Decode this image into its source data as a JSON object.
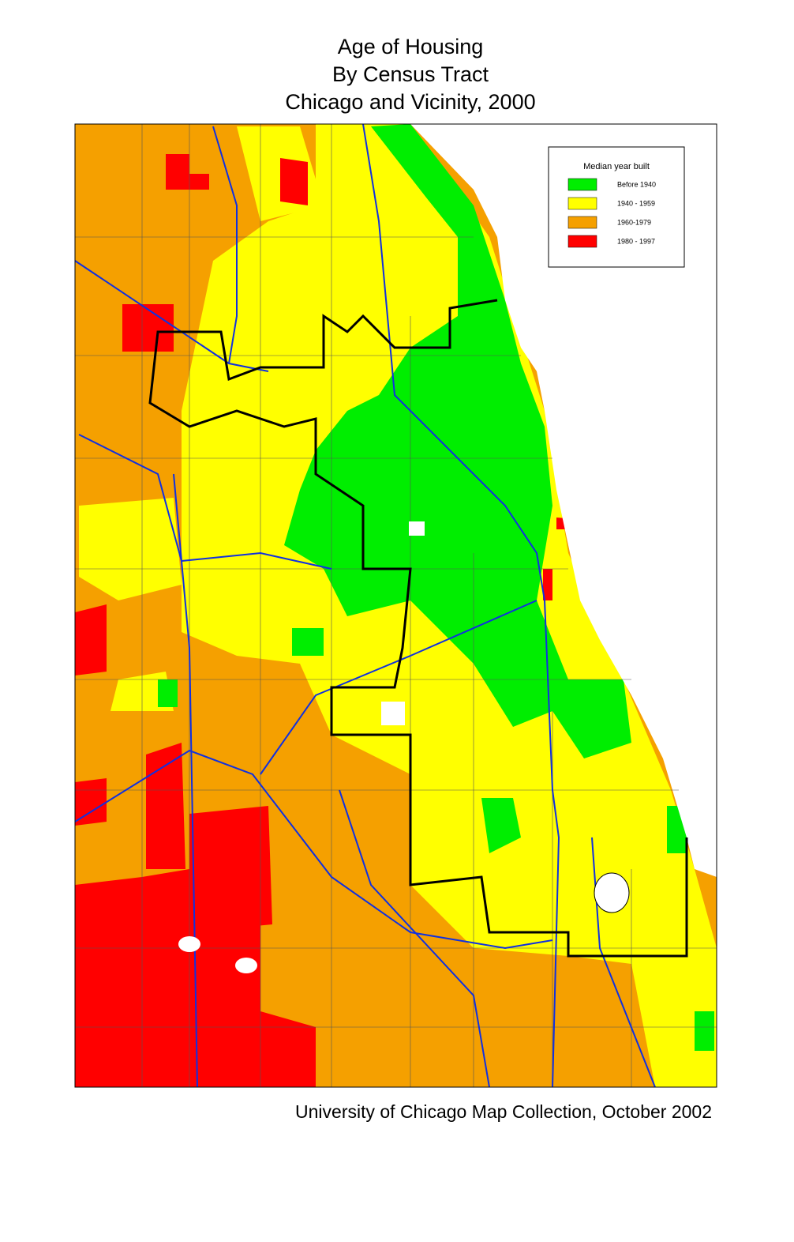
{
  "title": [
    "Age of Housing",
    "By Census Tract",
    "Chicago and Vicinity, 2000"
  ],
  "legend": {
    "title": "Median year built",
    "items": [
      {
        "label": "Before 1940",
        "color": "#00ee00"
      },
      {
        "label": "1940 - 1959",
        "color": "#ffff00"
      },
      {
        "label": "1960-1979",
        "color": "#f5a000"
      },
      {
        "label": "1980 - 1997",
        "color": "#ff0000"
      }
    ]
  },
  "credit": "University of Chicago Map Collection, October 2002"
}
